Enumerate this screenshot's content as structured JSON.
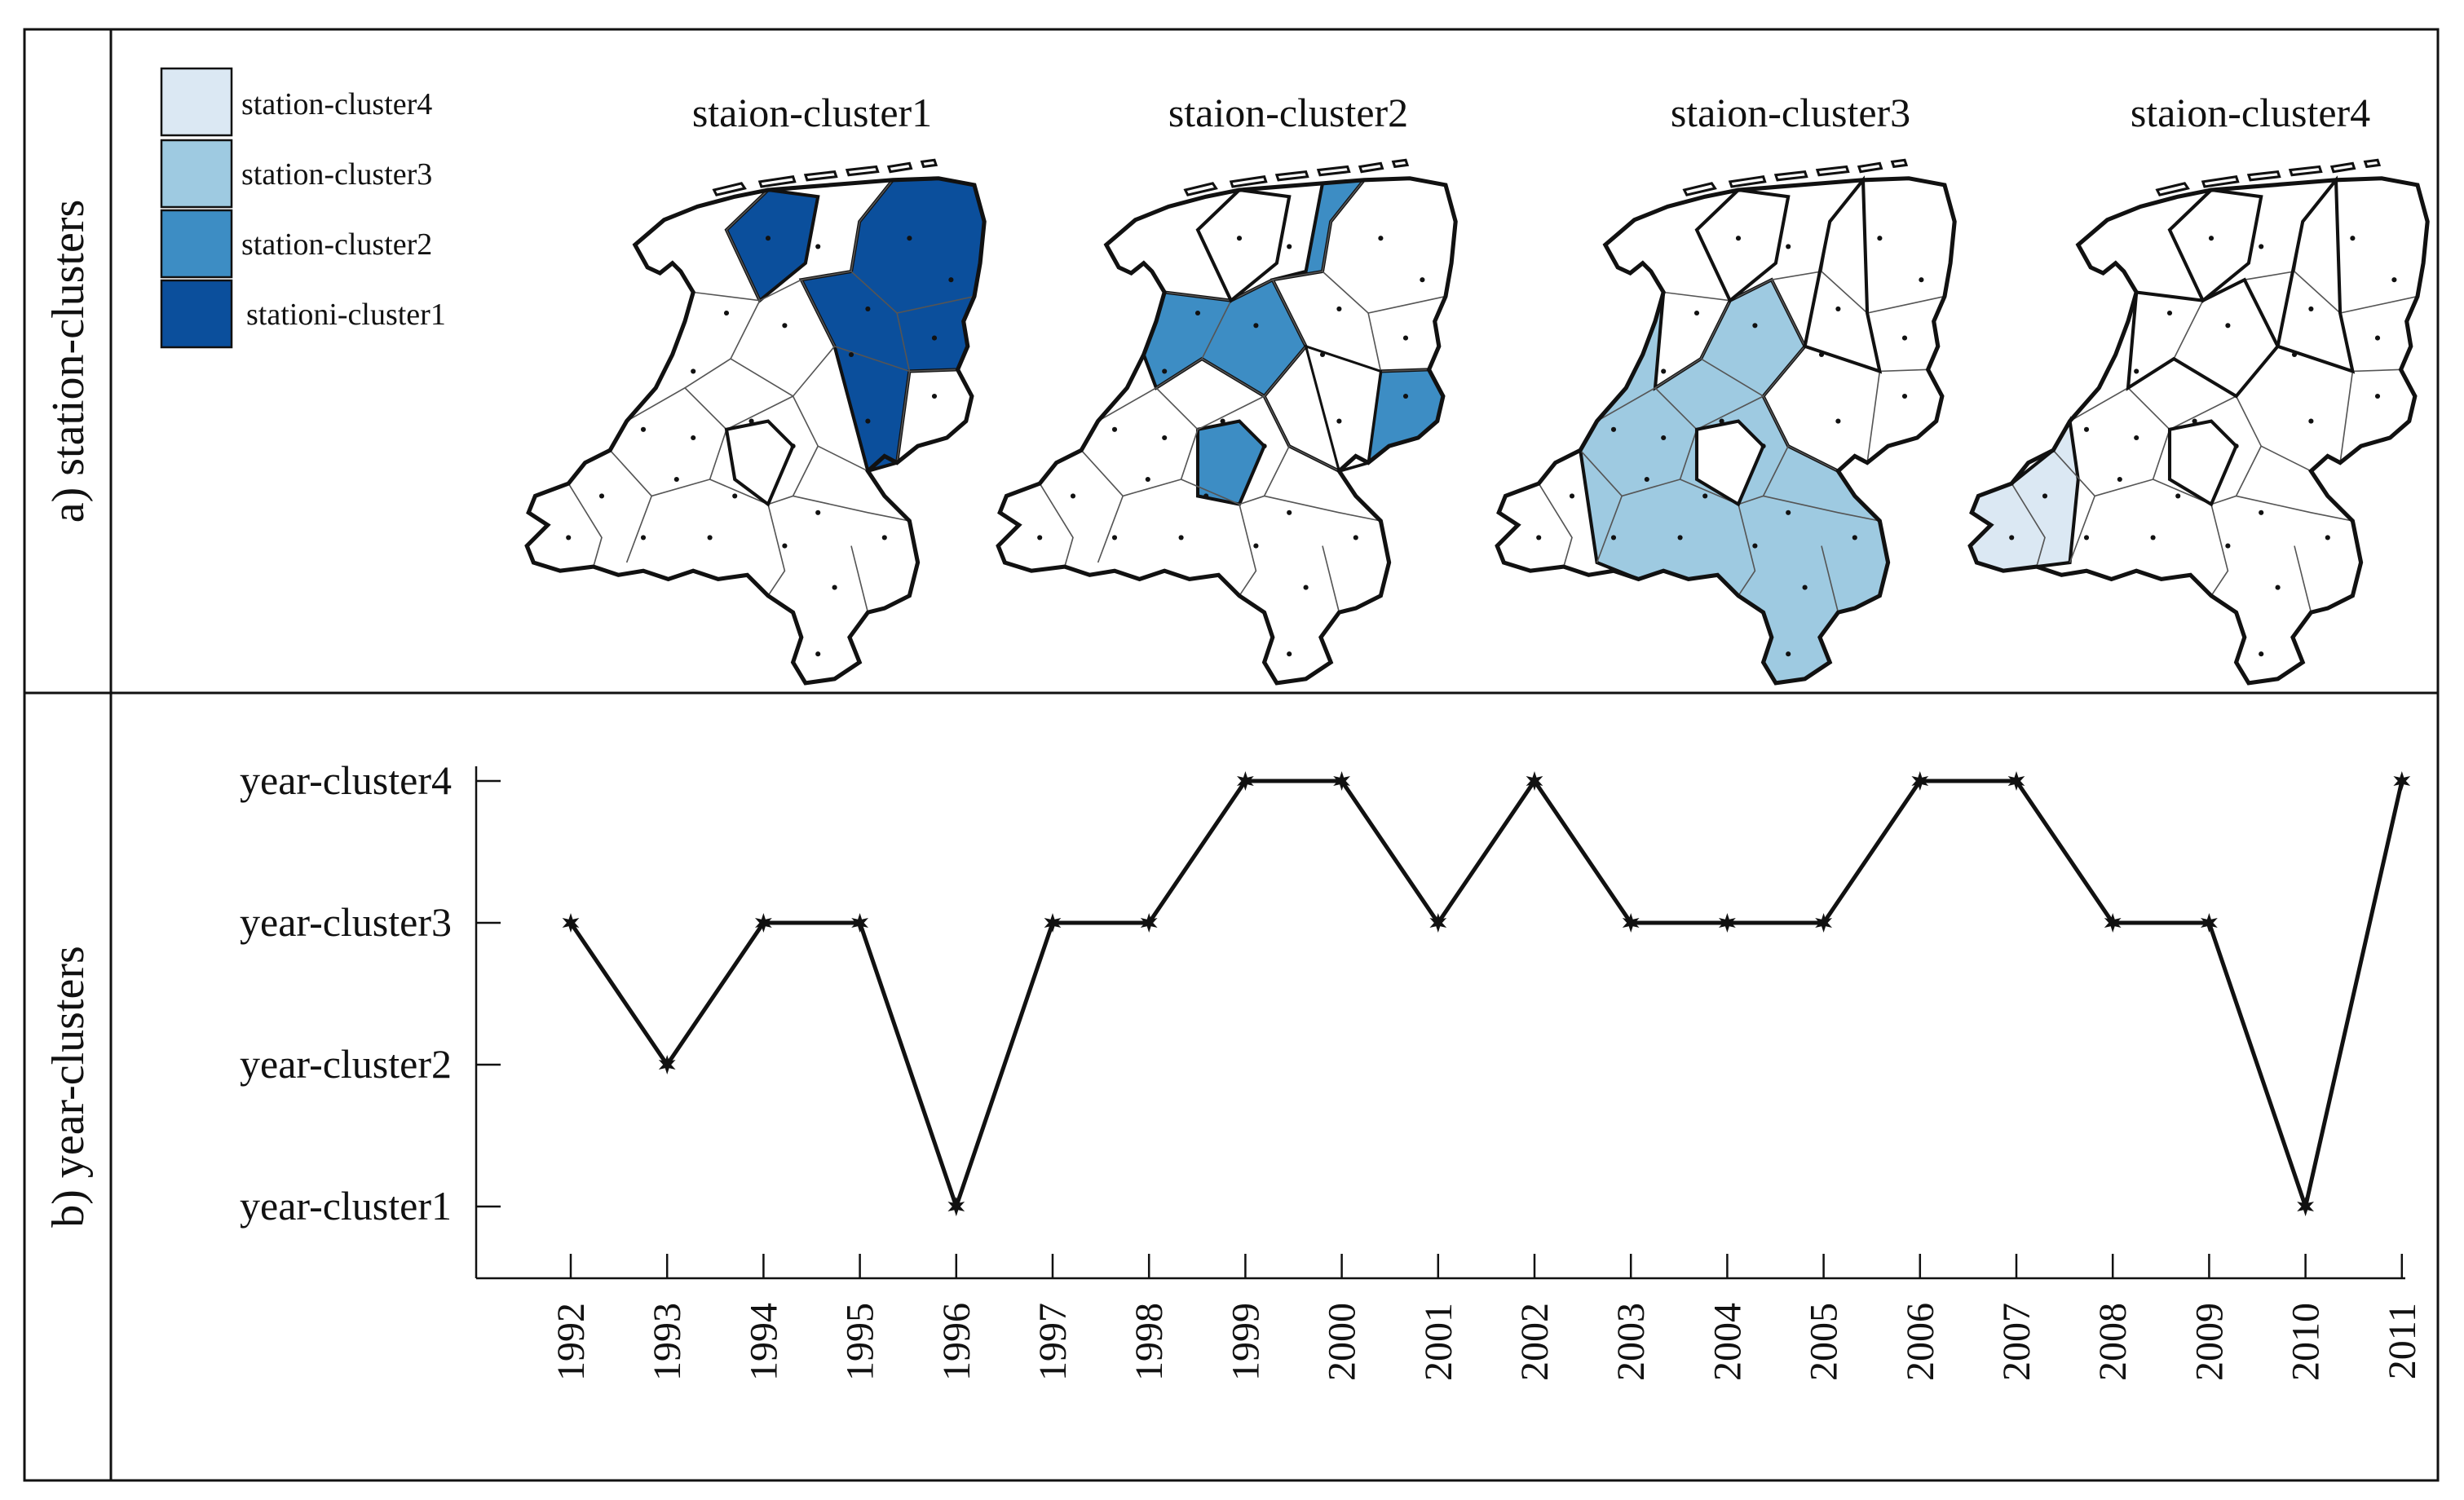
{
  "panels": {
    "a": {
      "label": "a) station-clusters"
    },
    "b": {
      "label": "b) year-clusters"
    }
  },
  "legend": {
    "items": [
      {
        "label": "station-cluster4",
        "color": "#dbe8f3"
      },
      {
        "label": "station-cluster3",
        "color": "#9ecae1"
      },
      {
        "label": "station-cluster2",
        "color": "#3d8dc4"
      },
      {
        "label": "stationi-cluster1",
        "color": "#0b4f9c"
      }
    ]
  },
  "maps": [
    {
      "title": "staion-cluster1",
      "color": "#0b4f9c",
      "highlight": "north-east"
    },
    {
      "title": "staion-cluster2",
      "color": "#3d8dc4",
      "highlight": "central-band"
    },
    {
      "title": "staion-cluster3",
      "color": "#9ecae1",
      "highlight": "south-west-center"
    },
    {
      "title": "staion-cluster4",
      "color": "#dbe8f3",
      "highlight": "south-west-coast"
    }
  ],
  "chart_data": {
    "type": "line",
    "x": [
      "1992",
      "1993",
      "1994",
      "1995",
      "1996",
      "1997",
      "1998",
      "1999",
      "2000",
      "2001",
      "2002",
      "2003",
      "2004",
      "2005",
      "2006",
      "2007",
      "2008",
      "2009",
      "2010",
      "2011"
    ],
    "y": [
      3,
      2,
      3,
      3,
      1,
      3,
      3,
      4,
      4,
      3,
      4,
      3,
      3,
      3,
      4,
      4,
      3,
      3,
      1,
      4
    ],
    "yticks": [
      "year-cluster1",
      "year-cluster2",
      "year-cluster3",
      "year-cluster4"
    ],
    "ylim": [
      1,
      4
    ],
    "marker": "star",
    "line_color": "#111111",
    "xlabel": "",
    "ylabel": ""
  }
}
